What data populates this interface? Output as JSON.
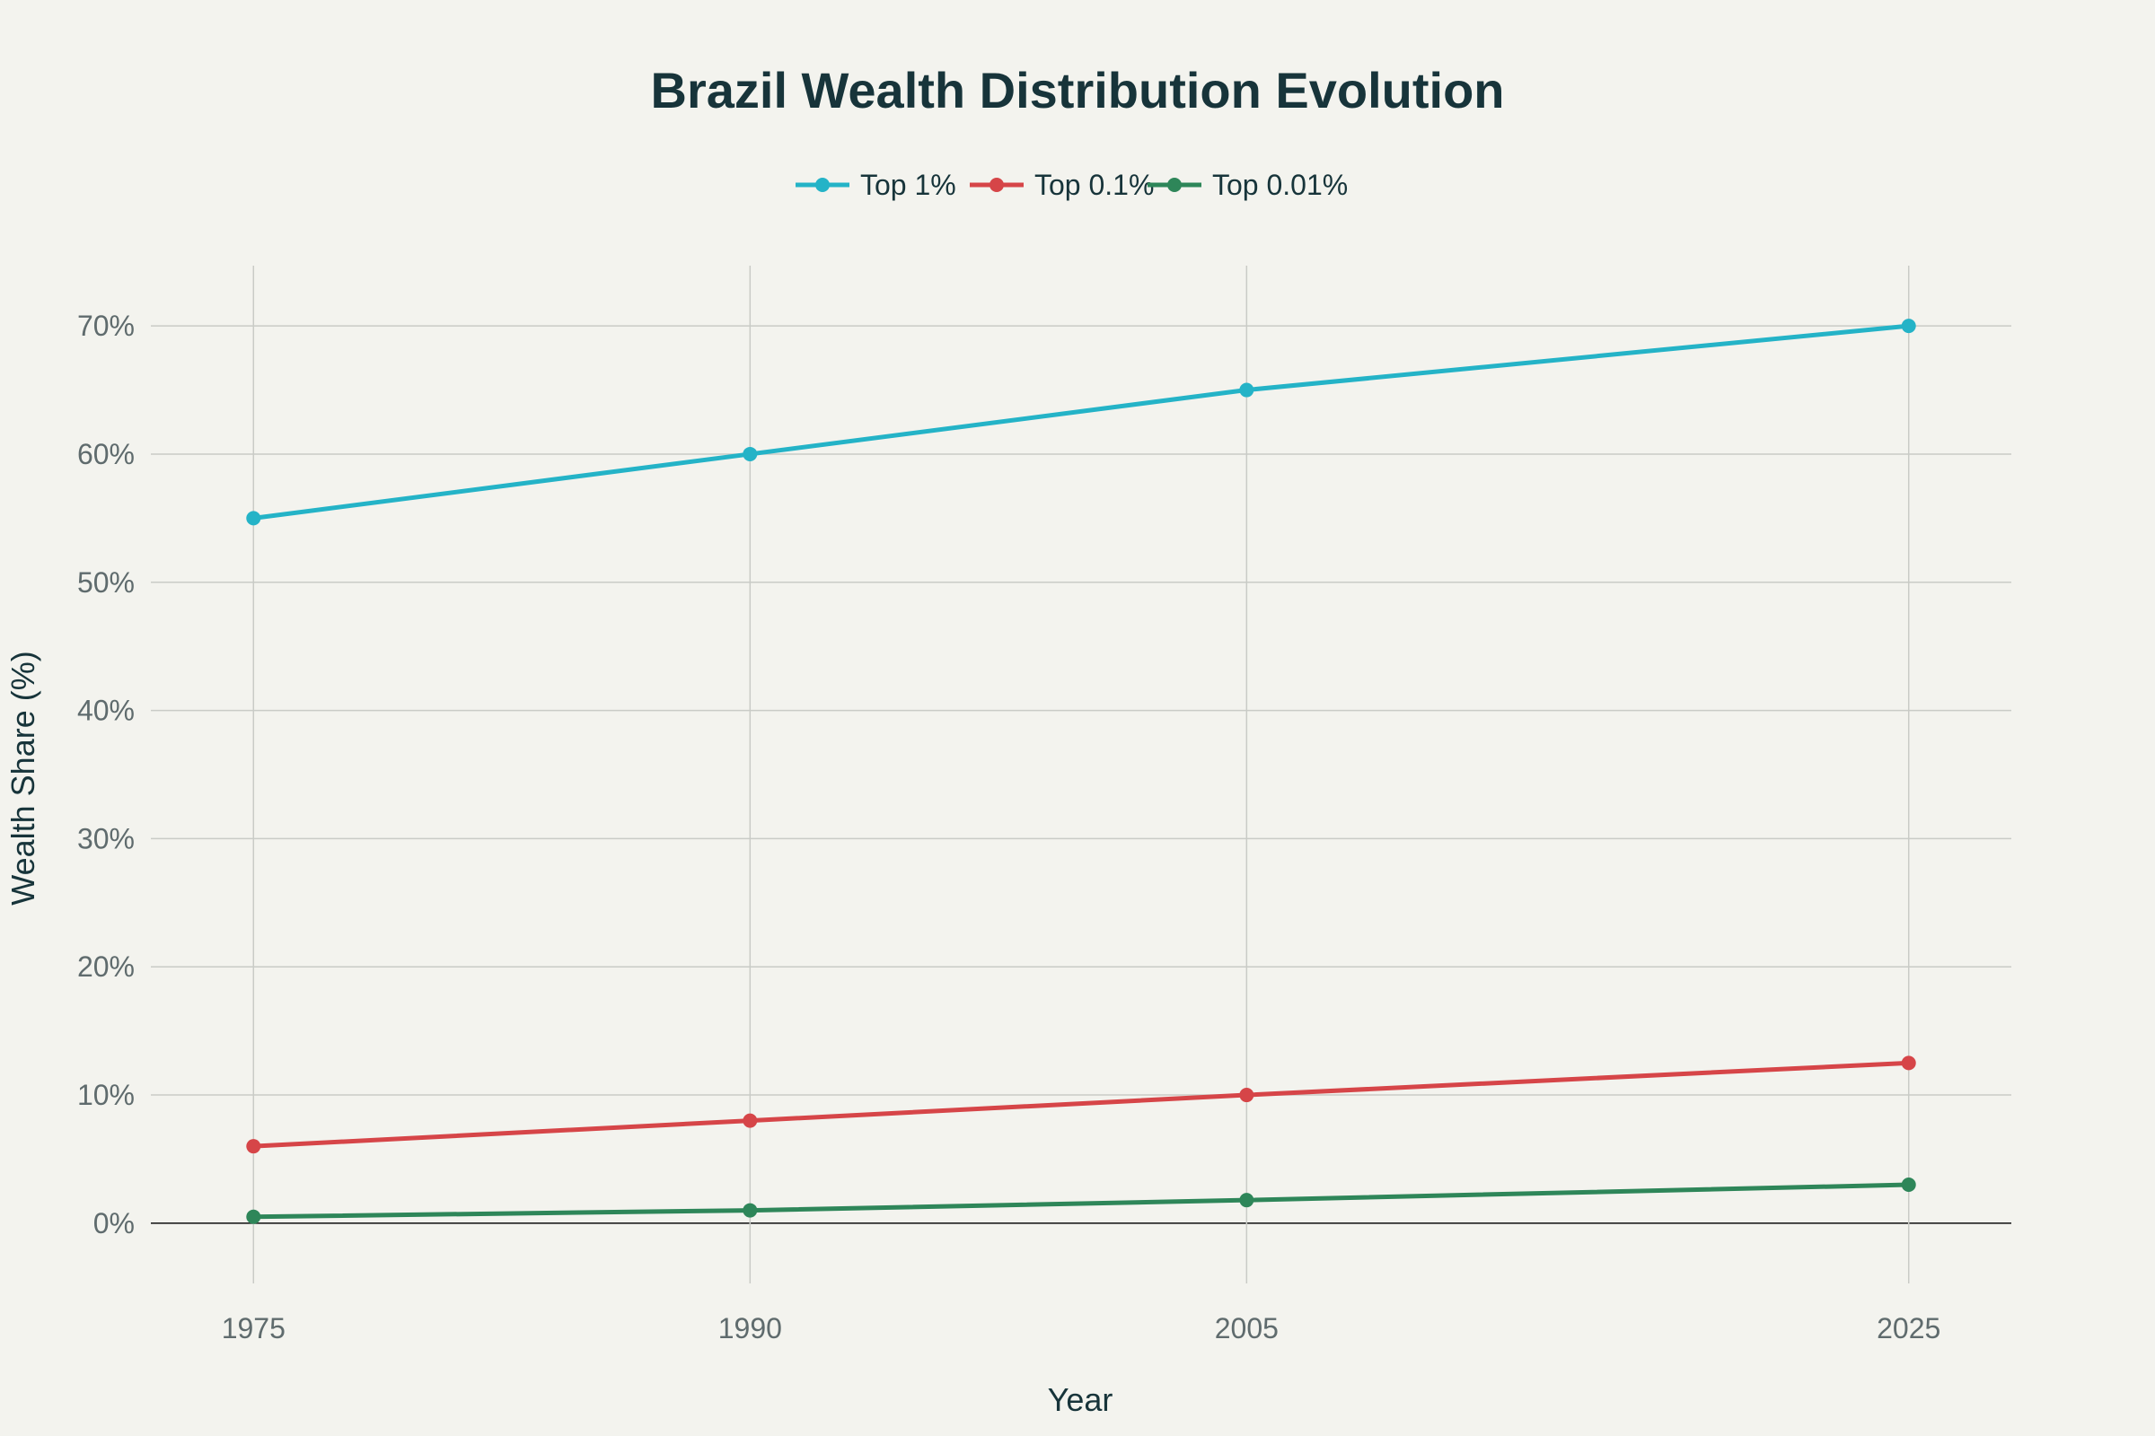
{
  "chart_data": {
    "type": "line",
    "title": "Brazil Wealth Distribution Evolution",
    "xlabel": "Year",
    "ylabel": "Wealth Share (%)",
    "x": [
      1975,
      1990,
      2005,
      2025
    ],
    "x_ticks": [
      "1975",
      "1990",
      "2005",
      "2025"
    ],
    "y_ticks": [
      "0%",
      "10%",
      "20%",
      "30%",
      "40%",
      "50%",
      "60%",
      "70%"
    ],
    "y_tick_values": [
      0,
      10,
      20,
      30,
      40,
      50,
      60,
      70
    ],
    "xlim": [
      1971.9,
      2028.1
    ],
    "ylim": [
      -4.7,
      74.7
    ],
    "grid": true,
    "legend_position": "top-center",
    "series": [
      {
        "name": "Top 1%",
        "color": "#24b3c7",
        "values": [
          55,
          60,
          65,
          70
        ]
      },
      {
        "name": "Top 0.1%",
        "color": "#d64548",
        "values": [
          6,
          8,
          10,
          12.5
        ]
      },
      {
        "name": "Top 0.01%",
        "color": "#2e8659",
        "values": [
          0.5,
          1,
          1.8,
          3
        ]
      }
    ]
  }
}
